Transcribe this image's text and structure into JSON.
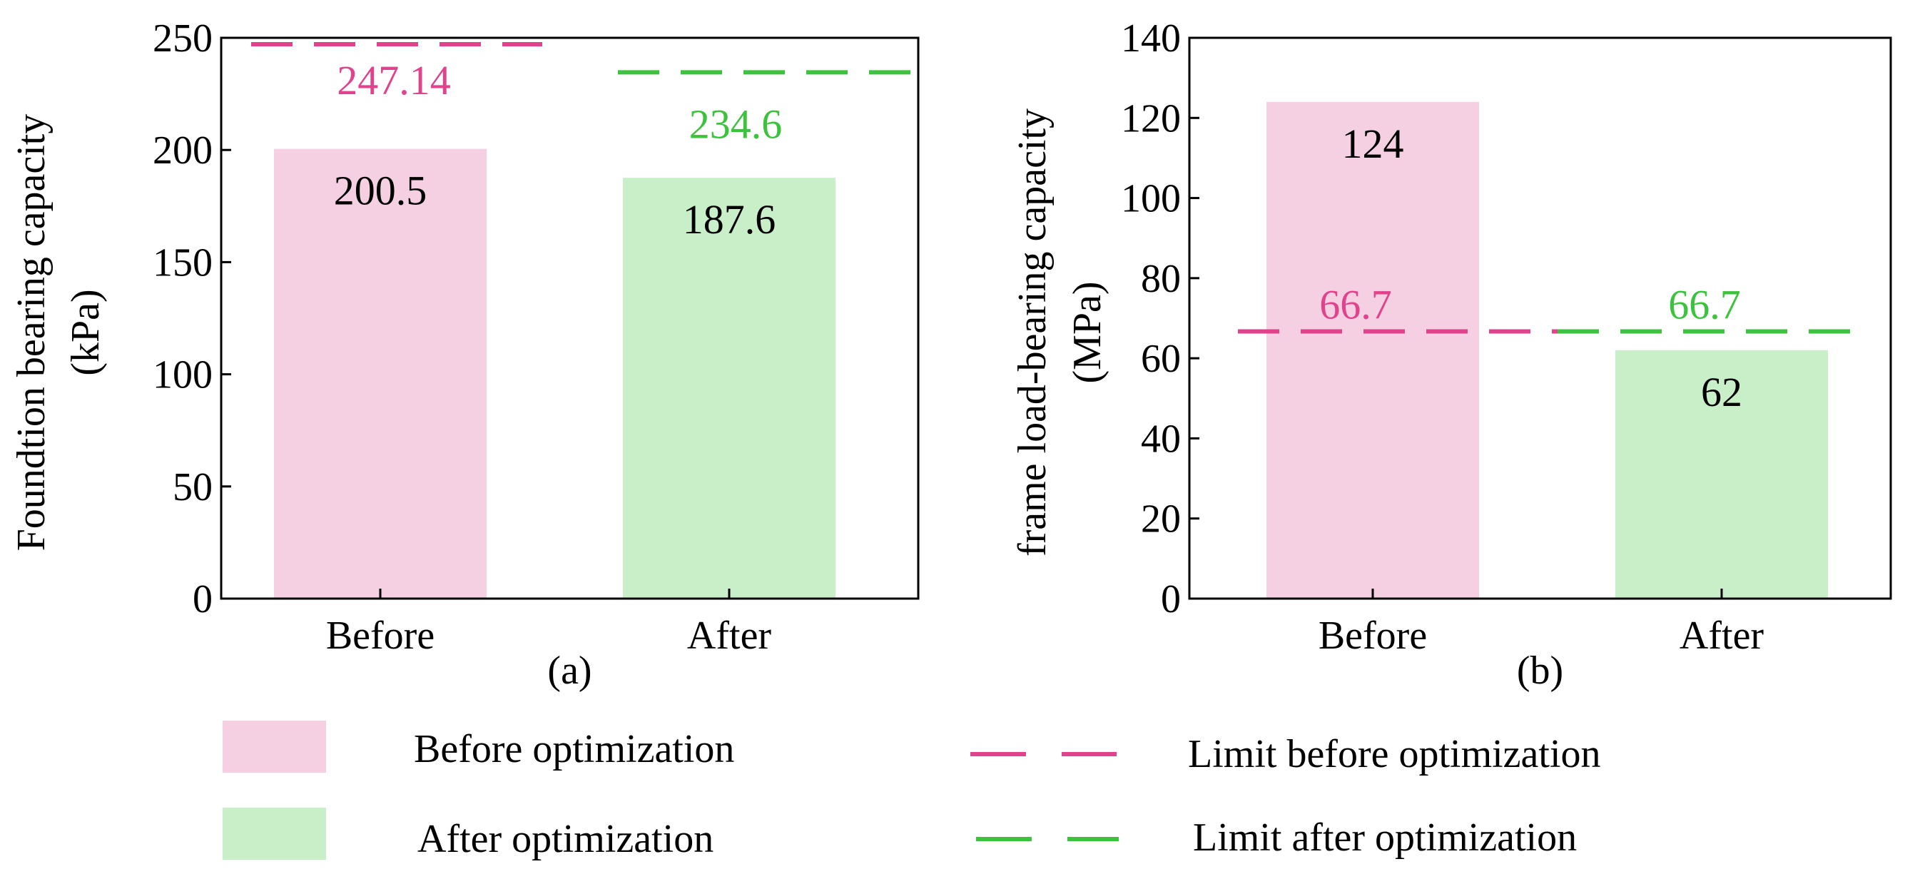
{
  "colors": {
    "before_fill": "#f5d0e2",
    "after_fill": "#c9efc9",
    "before_limit": "#e0428c",
    "after_limit": "#3cc23c",
    "axis": "#000000",
    "text": "#000000"
  },
  "chart_data": [
    {
      "type": "bar",
      "panel_label": "(a)",
      "ylabel": "Foundtion bearing capacity (kPa)",
      "ylabel_lines": [
        "Foundtion bearing capacity",
        "(kPa)"
      ],
      "categories": [
        "Before",
        "After"
      ],
      "values": [
        200.5,
        187.6
      ],
      "value_labels": [
        "200.5",
        "187.6"
      ],
      "ylim": [
        0,
        250
      ],
      "yticks": [
        0,
        50,
        100,
        150,
        200,
        250
      ],
      "limits": [
        {
          "name": "Limit before optimization",
          "value": 247.14,
          "label": "247.14",
          "category": 0
        },
        {
          "name": "Limit after optimization",
          "value": 234.6,
          "label": "234.6",
          "category": 1
        }
      ]
    },
    {
      "type": "bar",
      "panel_label": "(b)",
      "ylabel": "frame load-bearing capacity (MPa)",
      "ylabel_lines": [
        "frame load-bearing capacity",
        "(MPa)"
      ],
      "categories": [
        "Before",
        "After"
      ],
      "values": [
        124,
        62
      ],
      "value_labels": [
        "124",
        "62"
      ],
      "ylim": [
        0,
        140
      ],
      "yticks": [
        0,
        20,
        40,
        60,
        80,
        100,
        120,
        140
      ],
      "limits": [
        {
          "name": "Limit before optimization",
          "value": 66.7,
          "label": "66.7",
          "category": 0
        },
        {
          "name": "Limit after optimization",
          "value": 66.7,
          "label": "66.7",
          "category": 1
        }
      ]
    }
  ],
  "legend": [
    {
      "label": "Before optimization",
      "kind": "patch",
      "color_key": "before_fill"
    },
    {
      "label": "After optimization",
      "kind": "patch",
      "color_key": "after_fill"
    },
    {
      "label": "Limit before optimization",
      "kind": "line",
      "color_key": "before_limit"
    },
    {
      "label": "Limit after optimization",
      "kind": "line",
      "color_key": "after_limit"
    }
  ]
}
